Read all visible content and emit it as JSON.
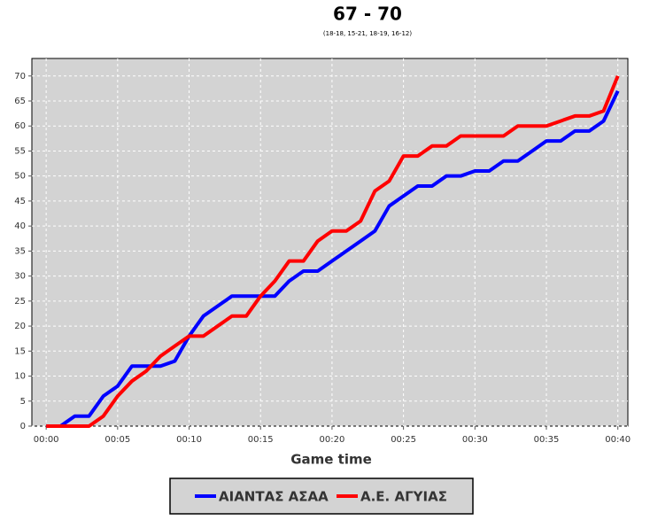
{
  "chart_data": {
    "type": "line",
    "title": "67 - 70",
    "subtitle": "(18-18, 15-21, 18-19, 16-12)",
    "x_label": "Game time",
    "x": [
      0,
      1,
      2,
      3,
      4,
      5,
      6,
      7,
      8,
      9,
      10,
      11,
      12,
      13,
      14,
      15,
      16,
      17,
      18,
      19,
      20,
      21,
      22,
      23,
      24,
      25,
      26,
      27,
      28,
      29,
      30,
      31,
      32,
      33,
      34,
      35,
      36,
      37,
      38,
      39,
      40
    ],
    "series": [
      {
        "name": "ΑΙΑΝΤΑΣ ΑΣΑΑ",
        "color": "#0000ff",
        "values": [
          0,
          0,
          2,
          2,
          6,
          8,
          12,
          12,
          12,
          13,
          18,
          22,
          24,
          26,
          26,
          26,
          26,
          29,
          31,
          31,
          33,
          35,
          37,
          39,
          44,
          46,
          48,
          48,
          50,
          50,
          51,
          51,
          53,
          53,
          55,
          57,
          57,
          59,
          59,
          61,
          67
        ]
      },
      {
        "name": "Α.Ε. ΑΓΥΙΑΣ",
        "color": "#ff0000",
        "values": [
          0,
          0,
          0,
          0,
          2,
          6,
          9,
          11,
          14,
          16,
          18,
          18,
          20,
          22,
          22,
          26,
          29,
          33,
          33,
          37,
          39,
          39,
          41,
          47,
          49,
          54,
          54,
          56,
          56,
          58,
          58,
          58,
          58,
          60,
          60,
          60,
          61,
          62,
          62,
          63,
          70
        ]
      }
    ],
    "xlim": [
      -1,
      40.7
    ],
    "ylim": [
      0,
      73.5
    ],
    "xticks": [
      {
        "value": 0,
        "label": "00:00"
      },
      {
        "value": 5,
        "label": "00:05"
      },
      {
        "value": 10,
        "label": "00:10"
      },
      {
        "value": 15,
        "label": "00:15"
      },
      {
        "value": 20,
        "label": "00:20"
      },
      {
        "value": 25,
        "label": "00:25"
      },
      {
        "value": 30,
        "label": "00:30"
      },
      {
        "value": 35,
        "label": "00:35"
      },
      {
        "value": 40,
        "label": "00:40"
      }
    ],
    "yticks": [
      0,
      5,
      10,
      15,
      20,
      25,
      30,
      35,
      40,
      45,
      50,
      55,
      60,
      65,
      70
    ],
    "grid": true,
    "background": "#d3d3d3"
  }
}
